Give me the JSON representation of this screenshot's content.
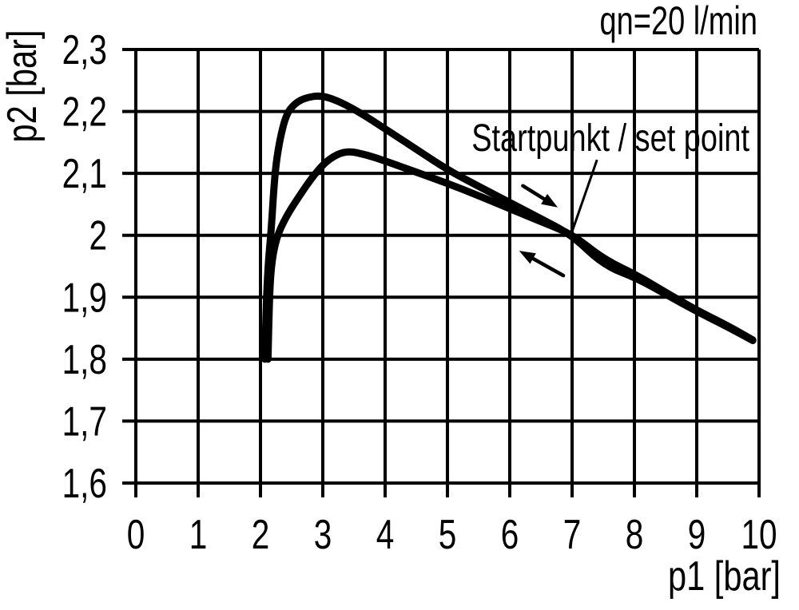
{
  "chart": {
    "flow_label": "qn=20 l/min",
    "x_axis_label": "p1 [bar]",
    "y_axis_label": "p2 [bar]",
    "annotation_label": "Startpunkt / set point"
  },
  "colors": {
    "ink": "#000000",
    "background": "#ffffff"
  },
  "chart_data": {
    "type": "line",
    "title": "qn=20 l/min",
    "xlabel": "p1 [bar]",
    "ylabel": "p2 [bar]",
    "xlim": [
      0,
      10
    ],
    "ylim": [
      1.6,
      2.3
    ],
    "grid": true,
    "legend": false,
    "x_ticks": {
      "values": [
        0,
        1,
        2,
        3,
        4,
        5,
        6,
        7,
        8,
        9,
        10
      ],
      "labels": [
        "0",
        "1",
        "2",
        "3",
        "4",
        "5",
        "6",
        "7",
        "8",
        "9",
        "10"
      ]
    },
    "y_ticks": {
      "values": [
        2.3,
        2.2,
        2.1,
        2.0,
        1.9,
        1.8,
        1.7,
        1.6
      ],
      "labels": [
        "2,3",
        "2,2",
        "2,1",
        "2",
        "1,9",
        "1,8",
        "1,7",
        "1,6"
      ]
    },
    "series": [
      {
        "name": "upper-curve-increasing-p1",
        "direction": "right",
        "points": [
          [
            2.07,
            1.8
          ],
          [
            2.09,
            1.88
          ],
          [
            2.12,
            1.95
          ],
          [
            2.17,
            2.005
          ],
          [
            2.23,
            2.1
          ],
          [
            2.3,
            2.15
          ],
          [
            2.41,
            2.195
          ],
          [
            2.55,
            2.213
          ],
          [
            2.72,
            2.222
          ],
          [
            2.95,
            2.226
          ],
          [
            3.2,
            2.219
          ],
          [
            3.55,
            2.201
          ],
          [
            4.0,
            2.172
          ],
          [
            4.5,
            2.139
          ],
          [
            5.0,
            2.106
          ],
          [
            5.5,
            2.079
          ],
          [
            6.0,
            2.053
          ],
          [
            6.5,
            2.027
          ],
          [
            7.0,
            2.0
          ],
          [
            7.5,
            1.952
          ],
          [
            8.05,
            1.93
          ],
          [
            8.5,
            1.905
          ],
          [
            9.0,
            1.877
          ],
          [
            9.5,
            1.852
          ],
          [
            9.9,
            1.83
          ]
        ]
      },
      {
        "name": "lower-curve-decreasing-p1",
        "direction": "left",
        "points": [
          [
            2.12,
            1.8
          ],
          [
            2.14,
            1.89
          ],
          [
            2.17,
            1.95
          ],
          [
            2.25,
            1.995
          ],
          [
            2.41,
            2.03
          ],
          [
            2.6,
            2.06
          ],
          [
            2.86,
            2.098
          ],
          [
            3.1,
            2.124
          ],
          [
            3.38,
            2.137
          ],
          [
            3.7,
            2.13
          ],
          [
            4.0,
            2.12
          ],
          [
            4.5,
            2.102
          ],
          [
            5.0,
            2.084
          ],
          [
            5.5,
            2.064
          ],
          [
            6.0,
            2.043
          ],
          [
            6.5,
            2.022
          ],
          [
            7.0,
            2.002
          ],
          [
            7.5,
            1.962
          ],
          [
            8.05,
            1.935
          ],
          [
            8.5,
            1.908
          ],
          [
            9.0,
            1.879
          ],
          [
            9.5,
            1.854
          ],
          [
            9.9,
            1.831
          ]
        ]
      }
    ],
    "annotations": {
      "set_point": {
        "text": "Startpunkt / set point",
        "leader_from_xy": [
          7.4,
          2.122
        ],
        "target_xy": [
          6.99,
          2.003
        ]
      },
      "arrows": [
        {
          "name": "direction-arrow-right",
          "from_xy": [
            6.21,
            2.08
          ],
          "to_xy": [
            6.77,
            2.045
          ]
        },
        {
          "name": "direction-arrow-left",
          "from_xy": [
            6.86,
            1.935
          ],
          "to_xy": [
            6.15,
            1.975
          ]
        }
      ]
    }
  }
}
